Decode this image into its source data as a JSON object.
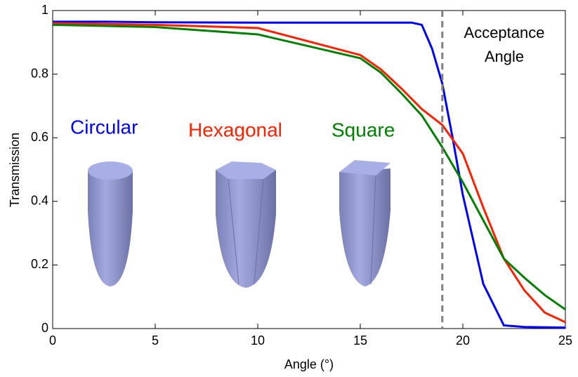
{
  "chart_data": {
    "type": "line",
    "xlabel": "Angle (°)",
    "ylabel": "Transmission",
    "xlim": [
      0,
      25
    ],
    "ylim": [
      0,
      1
    ],
    "xticks": [
      0,
      5,
      10,
      15,
      20,
      25
    ],
    "yticks": [
      0,
      0.2,
      0.4,
      0.6,
      0.8,
      1
    ],
    "vline": 19,
    "vline_color": "#808080",
    "annotation": [
      "Acceptance",
      "Angle"
    ],
    "series": [
      {
        "name": "Circular",
        "color": "#0000ff",
        "x": [
          0,
          2.5,
          5,
          10,
          15,
          17.5,
          18,
          18.5,
          19,
          19.5,
          20,
          20.5,
          21,
          22,
          23,
          25
        ],
        "values": [
          0.965,
          0.965,
          0.963,
          0.962,
          0.962,
          0.962,
          0.955,
          0.88,
          0.77,
          0.6,
          0.42,
          0.28,
          0.14,
          0.01,
          0.005,
          0.003
        ]
      },
      {
        "name": "Hexagonal",
        "color": "#ff2000",
        "x": [
          0,
          5,
          10,
          15,
          16,
          17,
          18,
          19,
          20,
          21,
          22,
          23,
          24,
          25
        ],
        "values": [
          0.96,
          0.955,
          0.945,
          0.86,
          0.815,
          0.755,
          0.69,
          0.64,
          0.55,
          0.38,
          0.22,
          0.12,
          0.05,
          0.02
        ]
      },
      {
        "name": "Square",
        "color": "#008000",
        "x": [
          0,
          5,
          10,
          15,
          16,
          17,
          18,
          19,
          20,
          21,
          22,
          23,
          24,
          25
        ],
        "values": [
          0.955,
          0.948,
          0.925,
          0.85,
          0.805,
          0.74,
          0.67,
          0.57,
          0.46,
          0.34,
          0.22,
          0.16,
          0.105,
          0.06
        ]
      }
    ]
  }
}
